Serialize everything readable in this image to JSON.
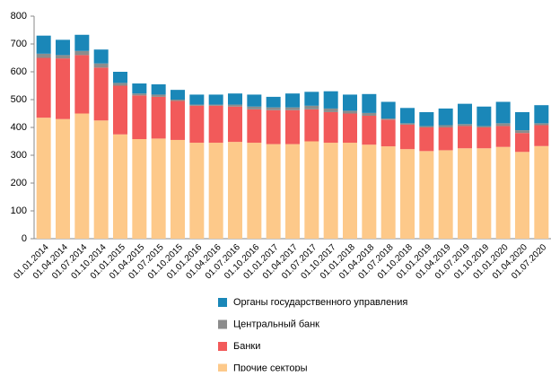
{
  "chart_data": {
    "type": "stacked_bar",
    "categories": [
      "01.01.2014",
      "01.04.2014",
      "01.07.2014",
      "01.10.2014",
      "01.01.2015",
      "01.04.2015",
      "01.07.2015",
      "01.10.2015",
      "01.01.2016",
      "01.04.2016",
      "01.07.2016",
      "01.10.2016",
      "01.01.2017",
      "01.04.2017",
      "01.07.2017",
      "01.10.2017",
      "01.01.2018",
      "01.04.2018",
      "01.07.2018",
      "01.10.2018",
      "01.01.2019",
      "01.04.2019",
      "01.07.2019",
      "01.10.2019",
      "01.01.2020",
      "01.04.2020",
      "01.07.2020"
    ],
    "series": [
      {
        "name": "Прочие секторы",
        "color": "#fdc98a",
        "values": [
          435,
          430,
          450,
          425,
          375,
          358,
          360,
          355,
          345,
          345,
          348,
          345,
          340,
          340,
          350,
          345,
          345,
          338,
          332,
          322,
          315,
          318,
          325,
          325,
          330,
          312,
          333
        ]
      },
      {
        "name": "Банки",
        "color": "#f25a5a",
        "values": [
          215,
          218,
          210,
          190,
          175,
          157,
          150,
          140,
          133,
          133,
          127,
          120,
          122,
          122,
          115,
          110,
          105,
          104,
          96,
          88,
          85,
          82,
          80,
          75,
          75,
          68,
          75
        ]
      },
      {
        "name": "Центральный банк",
        "color": "#8c8c8c",
        "values": [
          15,
          12,
          15,
          15,
          10,
          7,
          8,
          5,
          4,
          4,
          7,
          10,
          10,
          10,
          13,
          13,
          10,
          10,
          4,
          5,
          5,
          8,
          7,
          5,
          10,
          10,
          7
        ]
      },
      {
        "name": "Органы государственного управления",
        "color": "#1a87b8",
        "values": [
          65,
          55,
          58,
          50,
          40,
          36,
          37,
          35,
          36,
          36,
          40,
          43,
          38,
          50,
          50,
          62,
          58,
          68,
          60,
          55,
          50,
          60,
          73,
          70,
          77,
          65,
          65
        ]
      }
    ],
    "ylim": [
      0,
      800
    ],
    "yticks": [
      0,
      100,
      200,
      300,
      400,
      500,
      600,
      700,
      800
    ],
    "grid": false
  }
}
